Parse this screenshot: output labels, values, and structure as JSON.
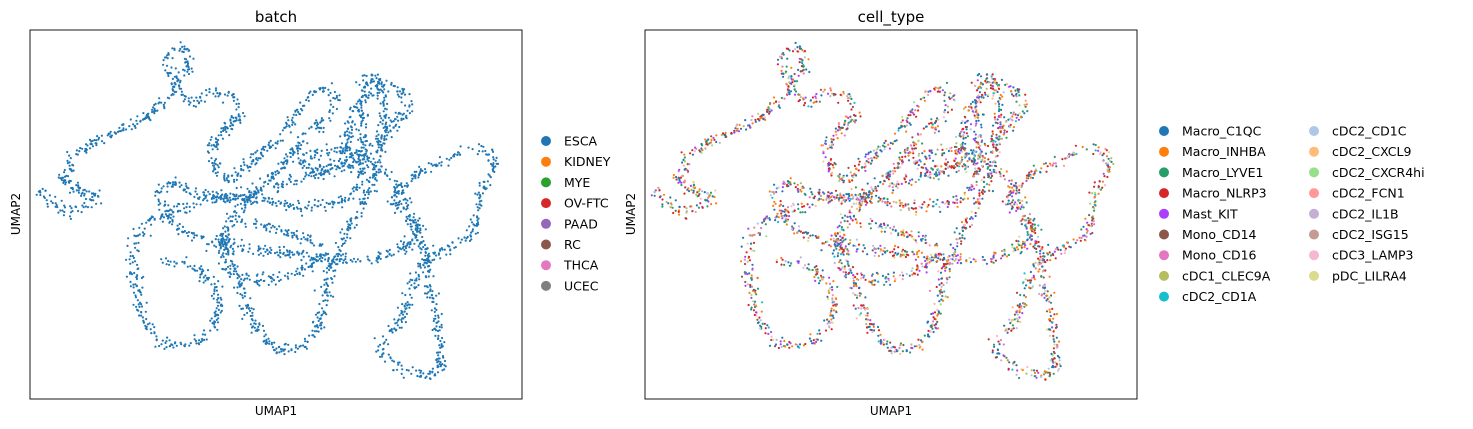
{
  "chart_data": [
    {
      "type": "scatter",
      "title": "batch",
      "xlabel": "UMAP1",
      "ylabel": "UMAP2",
      "xticks": [],
      "yticks": [],
      "legend": {
        "placement": "right",
        "columns": 1,
        "entries": [
          {
            "name": "ESCA",
            "color": "#1f77b4"
          },
          {
            "name": "KIDNEY",
            "color": "#ff7f0e"
          },
          {
            "name": "MYE",
            "color": "#2ca02c"
          },
          {
            "name": "OV-FTC",
            "color": "#d62728"
          },
          {
            "name": "PAAD",
            "color": "#9467bd"
          },
          {
            "name": "RC",
            "color": "#8c564b"
          },
          {
            "name": "THCA",
            "color": "#e377c2"
          },
          {
            "name": "UCEC",
            "color": "#7f7f7f"
          }
        ]
      },
      "points_color_mode": "single",
      "points_color": "#1f77b4"
    },
    {
      "type": "scatter",
      "title": "cell_type",
      "xlabel": "UMAP1",
      "ylabel": "UMAP2",
      "xticks": [],
      "yticks": [],
      "legend": {
        "placement": "right",
        "columns": 2,
        "entries": [
          {
            "name": "Macro_C1QC",
            "color": "#1f77b4"
          },
          {
            "name": "Macro_INHBA",
            "color": "#ff7f0e"
          },
          {
            "name": "Macro_LYVE1",
            "color": "#279e68"
          },
          {
            "name": "Macro_NLRP3",
            "color": "#d62728"
          },
          {
            "name": "Mast_KIT",
            "color": "#aa40fc"
          },
          {
            "name": "Mono_CD14",
            "color": "#8c564b"
          },
          {
            "name": "Mono_CD16",
            "color": "#e377c2"
          },
          {
            "name": "cDC1_CLEC9A",
            "color": "#b5bd61"
          },
          {
            "name": "cDC2_CD1A",
            "color": "#17becf"
          },
          {
            "name": "cDC2_CD1C",
            "color": "#aec7e8"
          },
          {
            "name": "cDC2_CXCL9",
            "color": "#ffbb78"
          },
          {
            "name": "cDC2_CXCR4hi",
            "color": "#98df8a"
          },
          {
            "name": "cDC2_FCN1",
            "color": "#ff9896"
          },
          {
            "name": "cDC2_IL1B",
            "color": "#c5b0d5"
          },
          {
            "name": "cDC2_ISG15",
            "color": "#c49c94"
          },
          {
            "name": "cDC3_LAMP3",
            "color": "#f7b6d2"
          },
          {
            "name": "pDC_LILRA4",
            "color": "#dbdb8d"
          }
        ]
      },
      "points_color_mode": "categorical"
    }
  ]
}
